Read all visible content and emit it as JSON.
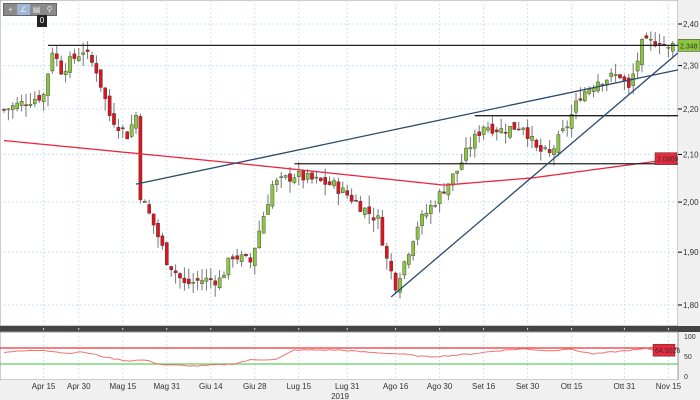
{
  "toolbar": {
    "buttons": [
      {
        "icon": "crosshair-icon",
        "glyph": "+"
      },
      {
        "icon": "draw-line-icon",
        "glyph": "∠"
      },
      {
        "icon": "save-icon",
        "glyph": "▤"
      },
      {
        "icon": "zoom-icon",
        "glyph": "⚲"
      }
    ],
    "zero_label": "0"
  },
  "chart_data": {
    "type": "candlestick",
    "yscale": "log",
    "ylim": [
      1.79,
      2.41
    ],
    "yticks": [
      "2,40",
      "2,30",
      "2,20",
      "2,10",
      "2,00",
      "1,90",
      "1,80"
    ],
    "ytick_values": [
      2.4,
      2.3,
      2.2,
      2.1,
      2.0,
      1.9,
      1.8
    ],
    "xticks": [
      {
        "label": "Apr 15",
        "day": 9
      },
      {
        "label": "Apr 30",
        "day": 17
      },
      {
        "label": "Mag 15",
        "day": 27
      },
      {
        "label": "Mag 31",
        "day": 37
      },
      {
        "label": "Giu 14",
        "day": 47
      },
      {
        "label": "Giu 28",
        "day": 57
      },
      {
        "label": "Lug 15",
        "day": 67
      },
      {
        "label": "Lug 31",
        "day": 78
      },
      {
        "label": "Ago 16",
        "day": 89
      },
      {
        "label": "Ago 30",
        "day": 99
      },
      {
        "label": "Set 16",
        "day": 109
      },
      {
        "label": "Set 30",
        "day": 119
      },
      {
        "label": "Ott 15",
        "day": 129
      },
      {
        "label": "Ott 31",
        "day": 141
      },
      {
        "label": "Nov 15",
        "day": 151
      }
    ],
    "xlabel": "2019",
    "close_path": [
      [
        0,
        2.198
      ],
      [
        9,
        2.232
      ],
      [
        11,
        2.337
      ],
      [
        13,
        2.29
      ],
      [
        18,
        2.337
      ],
      [
        21,
        2.29
      ],
      [
        24,
        2.186
      ],
      [
        28,
        2.142
      ],
      [
        30,
        2.186
      ],
      [
        31,
        2.015
      ],
      [
        34,
        1.954
      ],
      [
        37,
        1.885
      ],
      [
        41,
        1.838
      ],
      [
        45,
        1.847
      ],
      [
        49,
        1.847
      ],
      [
        52,
        1.894
      ],
      [
        56,
        1.881
      ],
      [
        61,
        2.035
      ],
      [
        66,
        2.056
      ],
      [
        70,
        2.046
      ],
      [
        75,
        2.035
      ],
      [
        78,
        2.015
      ],
      [
        82,
        1.985
      ],
      [
        85,
        1.964
      ],
      [
        87,
        1.885
      ],
      [
        89,
        1.838
      ],
      [
        91,
        1.881
      ],
      [
        94,
        1.954
      ],
      [
        99,
        2.015
      ],
      [
        103,
        2.066
      ],
      [
        106,
        2.12
      ],
      [
        109,
        2.164
      ],
      [
        113,
        2.153
      ],
      [
        118,
        2.164
      ],
      [
        121,
        2.11
      ],
      [
        124,
        2.099
      ],
      [
        128,
        2.164
      ],
      [
        131,
        2.232
      ],
      [
        135,
        2.266
      ],
      [
        140,
        2.278
      ],
      [
        142,
        2.243
      ],
      [
        145,
        2.349
      ],
      [
        149,
        2.361
      ],
      [
        151,
        2.337
      ],
      [
        152,
        2.348
      ]
    ],
    "moving_average": {
      "color": "#e8283c",
      "points": [
        [
          0,
          2.13
        ],
        [
          54,
          2.08
        ],
        [
          100,
          2.035
        ],
        [
          120,
          2.05
        ],
        [
          152,
          2.09
        ]
      ],
      "last_value": "2.0909"
    },
    "last_price": {
      "value": "2.348",
      "color": "#8cc63f"
    },
    "horizontal_levels": [
      {
        "price": 2.348,
        "from_day": 10
      },
      {
        "price": 2.185,
        "from_day": 107
      },
      {
        "price": 2.08,
        "from_day": 66
      }
    ],
    "trendlines": [
      {
        "from": [
          30,
          2.037
        ],
        "to": [
          154,
          2.29
        ]
      },
      {
        "from": [
          88,
          1.815
        ],
        "to": [
          154,
          2.33
        ]
      }
    ],
    "up_color": "#8cc63f",
    "down_color": "#e0141e",
    "rsi": {
      "ylim": [
        0,
        100
      ],
      "yticks": [
        "100",
        "50",
        "0"
      ],
      "upper": 70,
      "lower": 30,
      "last_value": "64.5026",
      "points": [
        [
          0,
          60
        ],
        [
          9,
          65
        ],
        [
          14,
          57
        ],
        [
          18,
          60
        ],
        [
          24,
          45
        ],
        [
          28,
          38
        ],
        [
          32,
          40
        ],
        [
          36,
          28
        ],
        [
          44,
          25
        ],
        [
          52,
          30
        ],
        [
          56,
          40
        ],
        [
          62,
          42
        ],
        [
          66,
          65
        ],
        [
          76,
          65
        ],
        [
          82,
          60
        ],
        [
          90,
          55
        ],
        [
          96,
          48
        ],
        [
          100,
          50
        ],
        [
          106,
          55
        ],
        [
          112,
          63
        ],
        [
          118,
          68
        ],
        [
          124,
          63
        ],
        [
          128,
          68
        ],
        [
          134,
          55
        ],
        [
          140,
          62
        ],
        [
          146,
          68
        ],
        [
          150,
          62
        ],
        [
          152,
          64.5
        ]
      ]
    }
  }
}
